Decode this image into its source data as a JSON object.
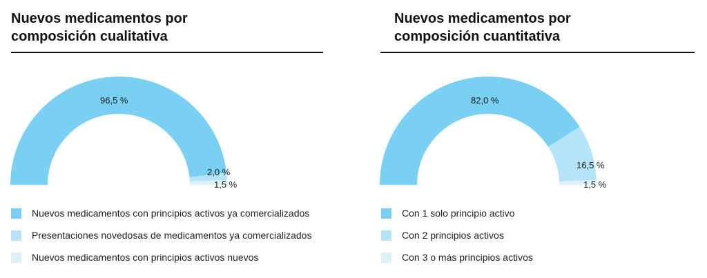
{
  "chart_data": [
    {
      "type": "pie",
      "variant": "semicircle-donut",
      "title": "Nuevos medicamentos por composición cualitativa",
      "categories": [
        "Nuevos medicamentos con principios activos ya comercializados",
        "Presentaciones novedosas de medicamentos ya comercializados",
        "Nuevos medicamentos con principios activos nuevos"
      ],
      "values": [
        96.5,
        2.0,
        1.5
      ],
      "labels": [
        "96,5 %",
        "2,0 %",
        "1,5 %"
      ],
      "colors": [
        "#79d0f2",
        "#b5e3f7",
        "#ddf1fb"
      ],
      "legend": "bottom"
    },
    {
      "type": "pie",
      "variant": "semicircle-donut",
      "title": "Nuevos medicamentos por composición cuantitativa",
      "categories": [
        "Con 1 solo principio activo",
        "Con 2 principios activos",
        "Con 3 o más principios activos"
      ],
      "values": [
        82.0,
        16.5,
        1.5
      ],
      "labels": [
        "82,0 %",
        "16,5 %",
        "1,5 %"
      ],
      "colors": [
        "#79d0f2",
        "#b5e3f7",
        "#ddf1fb"
      ],
      "legend": "bottom"
    }
  ],
  "panels": [
    {
      "title_line1": "Nuevos medicamentos por",
      "title_line2": "composición cualitativa"
    },
    {
      "title_line1": "Nuevos medicamentos por",
      "title_line2": "composición cuantitativa"
    }
  ]
}
